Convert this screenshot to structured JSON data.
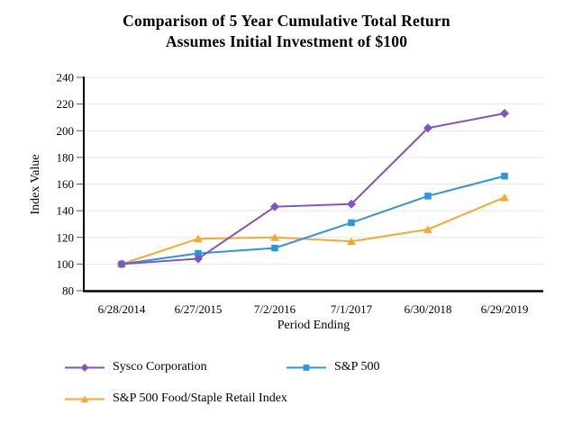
{
  "colors": {
    "grid": "#E7E7E7",
    "axis": "#000000",
    "tick": "#595959",
    "background": "#FFFFFF"
  },
  "chart_data": {
    "type": "line",
    "title": "Comparison of 5 Year Cumulative Total Return",
    "subtitle": "Assumes Initial Investment of $100",
    "xlabel": "Period Ending",
    "ylabel": "Index Value",
    "ylim": [
      80,
      240
    ],
    "ytick_step": 20,
    "grid": "horizontal-only",
    "legend_position": "bottom-left",
    "categories": [
      "6/28/2014",
      "6/27/2015",
      "7/2/2016",
      "7/1/2017",
      "6/30/2018",
      "6/29/2019"
    ],
    "series": [
      {
        "name": "Sysco Corporation",
        "marker": "diamond",
        "color": "#7F52C8",
        "values": [
          100,
          104,
          143,
          145,
          202,
          213
        ]
      },
      {
        "name": "S&P 500",
        "marker": "square",
        "color": "#2B94E4",
        "values": [
          100,
          108,
          112,
          131,
          151,
          166
        ]
      },
      {
        "name": "S&P 500 Food/Staple Retail Index",
        "marker": "triangle",
        "color": "#FAA72E",
        "values": [
          100,
          119,
          120,
          117,
          126,
          150
        ]
      }
    ]
  }
}
